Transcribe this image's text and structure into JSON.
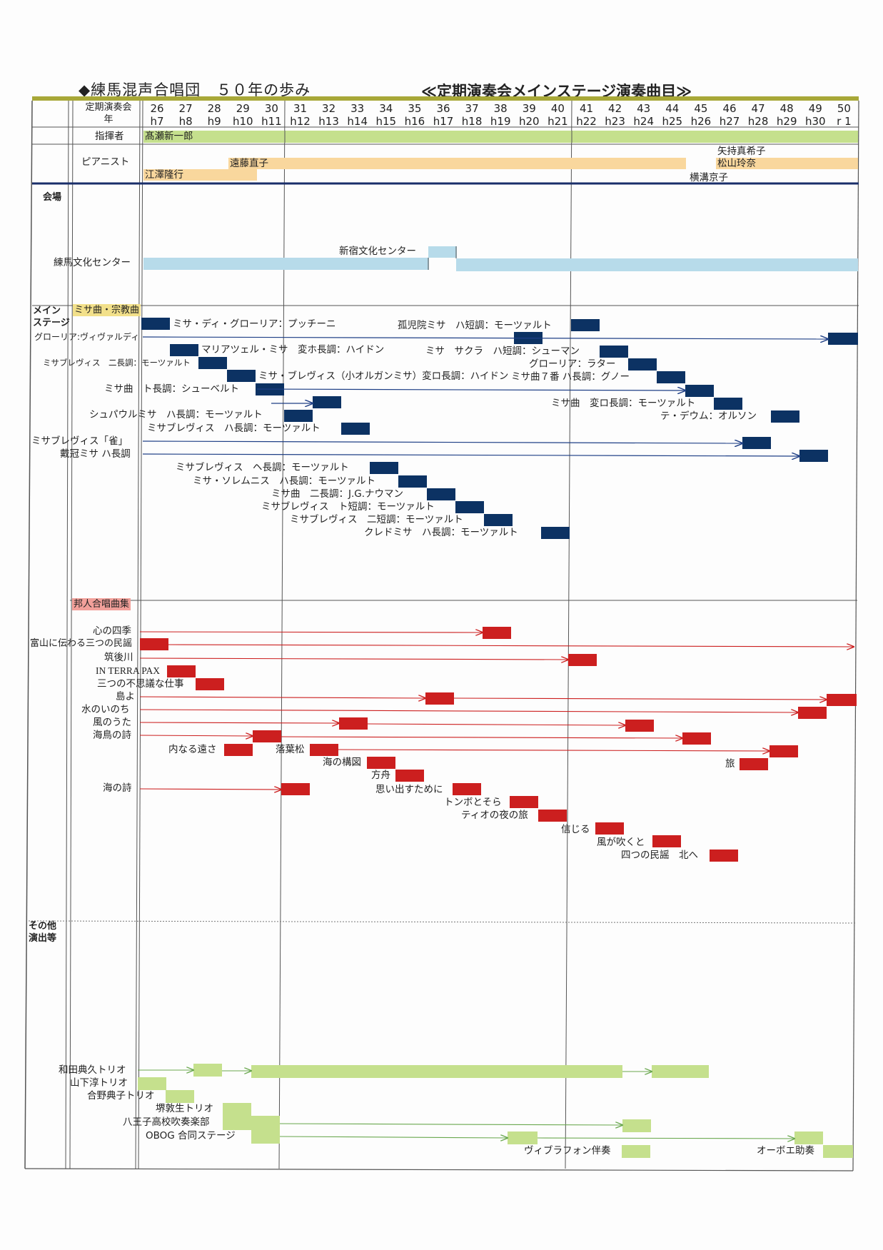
{
  "title": "◆練馬混声合唱団　５０年の歩み",
  "subtitle": "≪定期演奏会メインステージ演奏曲目≫",
  "header": {
    "concert_label": "定期演奏会",
    "year_label": "年",
    "numbers": [
      "26",
      "27",
      "28",
      "29",
      "30",
      "31",
      "32",
      "33",
      "34",
      "35",
      "36",
      "37",
      "38",
      "39",
      "40",
      "41",
      "42",
      "43",
      "44",
      "45",
      "46",
      "47",
      "48",
      "49",
      "50"
    ],
    "eras": [
      "h7",
      "h8",
      "h9",
      "h10",
      "h11",
      "h12",
      "h13",
      "h14",
      "h15",
      "h16",
      "h17",
      "h18",
      "h19",
      "h20",
      "h21",
      "h22",
      "h23",
      "h24",
      "h25",
      "h26",
      "h27",
      "h28",
      "h29",
      "h30",
      "r 1"
    ]
  },
  "conductor": {
    "label": "指揮者",
    "name": "髙瀬新一郎"
  },
  "pianist": {
    "label": "ピアニスト",
    "names": [
      "江澤隆行",
      "遠藤直子",
      "矢持真希子",
      "松山玲奈",
      "横溝京子"
    ]
  },
  "venue": {
    "label": "会場",
    "main": "練馬文化センター",
    "alt": "新宿文化センター"
  },
  "main_stage": {
    "label_line1": "メイン",
    "label_line2": "ステージ",
    "category": "ミサ曲・宗教曲",
    "pieces": [
      "ミサ・ディ・グローリア：プッチーニ",
      "孤児院ミサ　ハ短調：モーツァルト",
      "グローリア:ヴィヴァルディ",
      "マリアツェル・ミサ　変ホ長調：ハイドン",
      "ミサ　サクラ　ハ短調：シューマン",
      "ミサブレヴィス　二長調：モーツァルト",
      "グローリア：ラター",
      "ミサ・ブレヴィス（小オルガンミサ）変ロ長調：ハイドン",
      "ミサ曲７番 ハ長調：グノー",
      "ミサ曲　ト長調：シューベルト",
      "ミサ曲　変ロ長調：モーツァルト",
      "シュパウルミサ　ハ長調：モーツァルト",
      "テ・デウム：オルソン",
      "ミサブレヴィス　ハ長調：モーツァルト",
      "ミサブレヴィス「雀」",
      "戴冠ミサ ハ長調",
      "ミサブレヴィス　ヘ長調：モーツァルト",
      "ミサ・ソレムニス　ハ長調：モーツァルト",
      "ミサ曲　二長調：J.G.ナウマン",
      "ミサブレヴィス　ト短調：モーツァルト",
      "ミサブレヴィス　二短調：モーツァルト",
      "クレドミサ　ハ長調：モーツァルト"
    ]
  },
  "japanese": {
    "category": "邦人合唱曲集",
    "pieces": [
      "心の四季",
      "富山に伝わる三つの民謡",
      "筑後川",
      "IN TERRA PAX",
      "三つの不思議な仕事",
      "島よ",
      "水のいのち",
      "風のうた",
      "海鳥の詩",
      "内なる遠さ",
      "落葉松",
      "海の構図",
      "方舟",
      "海の詩",
      "思い出すために",
      "トンボとそら",
      "ティオの夜の旅",
      "信じる",
      "旅",
      "風が吹くと",
      "四つの民謡　北へ"
    ]
  },
  "other": {
    "label_line1": "その他",
    "label_line2": "演出等",
    "items": [
      "和田典久トリオ",
      "山下淳トリオ",
      "合野典子トリオ",
      "堺敦生トリオ",
      "八王子高校吹奏楽部",
      "OBOG 合同ステージ",
      "ヴィブラフォン伴奏",
      "オーボエ助奏"
    ]
  },
  "colors": {
    "navy": "#0c3263",
    "red": "#cc1f1f",
    "green": "#c5e08d",
    "blue": "#b7dbea",
    "orange": "#f9d79d",
    "olive": "#a8a838"
  }
}
